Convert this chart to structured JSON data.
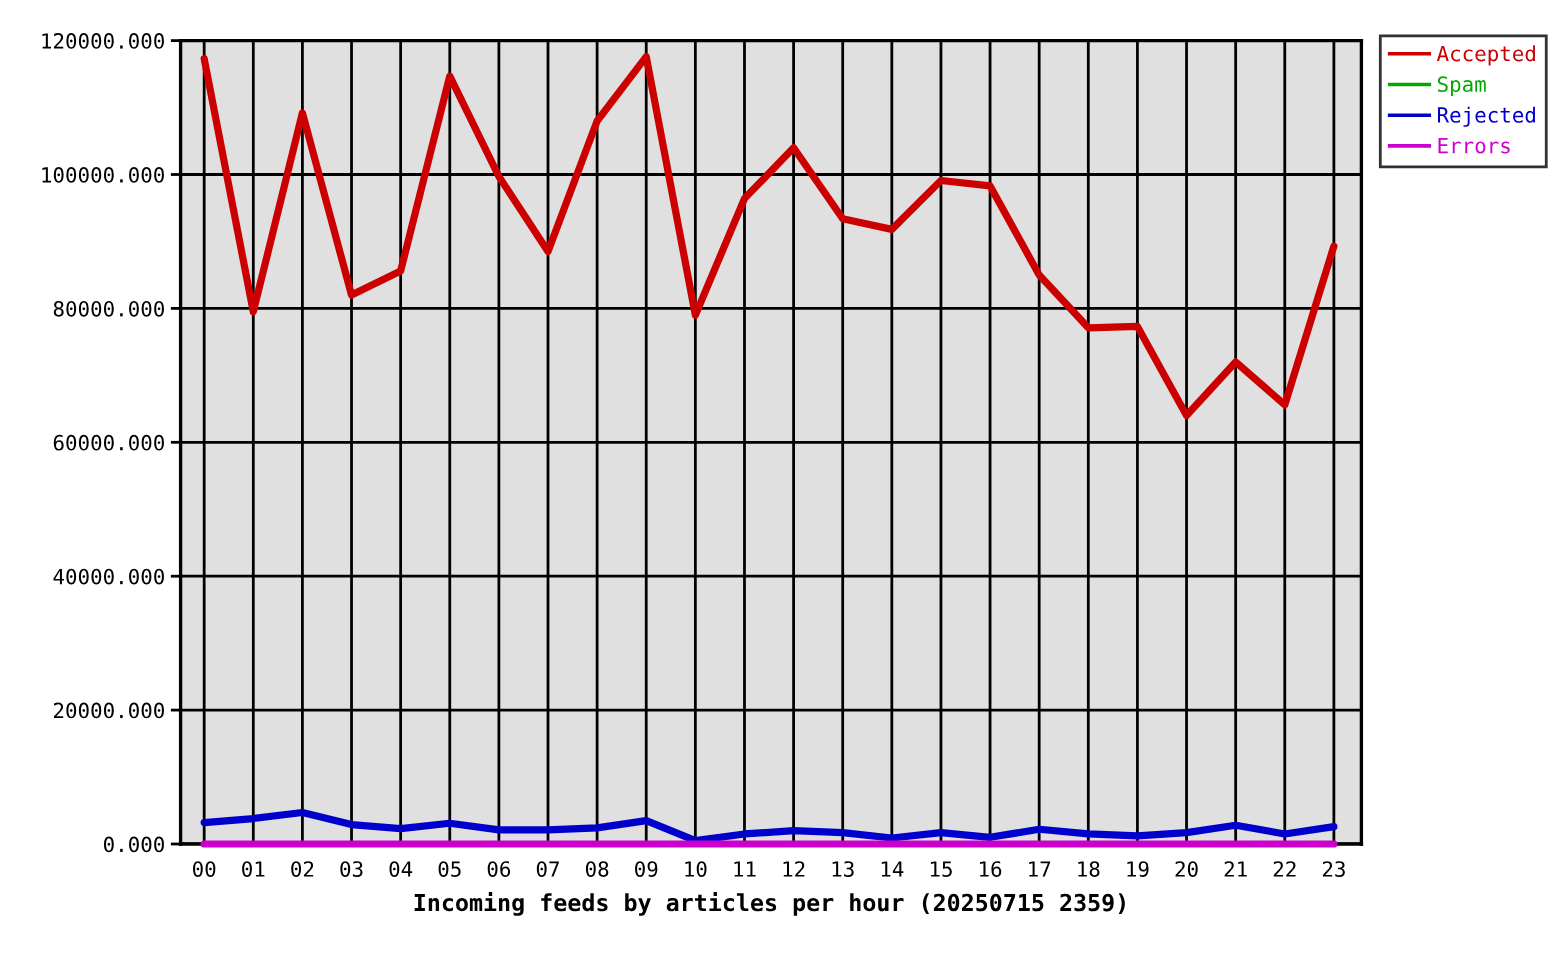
{
  "chart_data": {
    "type": "line",
    "xlabel": "Incoming feeds by articles per hour (20250715 2359)",
    "categories": [
      "00",
      "01",
      "02",
      "03",
      "04",
      "05",
      "06",
      "07",
      "08",
      "09",
      "10",
      "11",
      "12",
      "13",
      "14",
      "15",
      "16",
      "17",
      "18",
      "19",
      "20",
      "21",
      "22",
      "23"
    ],
    "series": [
      {
        "name": "Accepted",
        "color": "#cc0000",
        "values": [
          117300,
          79500,
          109200,
          82000,
          85600,
          114700,
          99700,
          88500,
          108000,
          117600,
          79000,
          96400,
          104000,
          93400,
          91800,
          99100,
          98300,
          85000,
          77100,
          77300,
          64000,
          72000,
          65600,
          89300
        ]
      },
      {
        "name": "Spam",
        "color": "#00aa00",
        "values": [
          null,
          null,
          null,
          null,
          null,
          null,
          null,
          null,
          null,
          null,
          null,
          null,
          null,
          null,
          null,
          null,
          null,
          null,
          null,
          null,
          null,
          null,
          null,
          null
        ]
      },
      {
        "name": "Rejected",
        "color": "#0000cc",
        "values": [
          3200,
          3800,
          4700,
          2900,
          2300,
          3100,
          2100,
          2100,
          2400,
          3500,
          500,
          1500,
          2000,
          1700,
          900,
          1700,
          1000,
          2200,
          1500,
          1200,
          1700,
          2800,
          1500,
          2600
        ]
      },
      {
        "name": "Errors",
        "color": "#cc00cc",
        "values": [
          0,
          0,
          0,
          0,
          0,
          0,
          0,
          0,
          0,
          0,
          0,
          0,
          0,
          0,
          0,
          0,
          0,
          0,
          0,
          0,
          0,
          0,
          0,
          0
        ]
      }
    ],
    "ylim": [
      0,
      120000
    ],
    "yticks": [
      {
        "value": 0,
        "label": "0.000"
      },
      {
        "value": 20000,
        "label": "20000.000"
      },
      {
        "value": 40000,
        "label": "40000.000"
      },
      {
        "value": 60000,
        "label": "60000.000"
      },
      {
        "value": 80000,
        "label": "80000.000"
      },
      {
        "value": 100000,
        "label": "100000.000"
      },
      {
        "value": 120000,
        "label": "120000.000"
      }
    ],
    "grid": true,
    "legend": "top right"
  }
}
